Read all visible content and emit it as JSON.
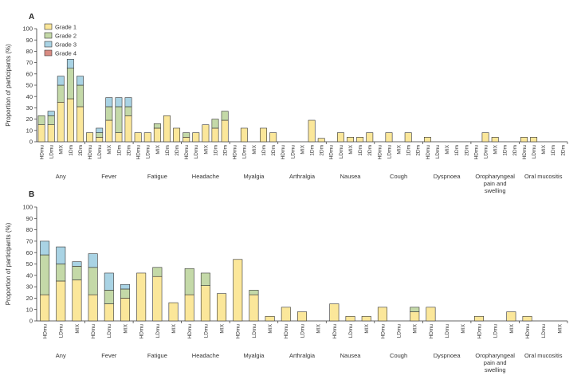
{
  "colors": {
    "Grade 1": "#fbe79a",
    "Grade 2": "#c4d9a8",
    "Grade 3": "#a9d3e4",
    "Grade 4": "#d98b82",
    "axis": "#333333"
  },
  "chart_data": [
    {
      "panel": "A",
      "type": "bar",
      "stacked": true,
      "ylabel": "Proportion of participants (%)",
      "ylim": [
        0,
        100
      ],
      "yticks": [
        0,
        10,
        20,
        30,
        40,
        50,
        60,
        70,
        80,
        90,
        100
      ],
      "legend": [
        "Grade 1",
        "Grade 2",
        "Grade 3",
        "Grade 4"
      ],
      "groups": [
        {
          "name": "Any",
          "bars": [
            {
              "label": "HDmu",
              "values": [
                15,
                8,
                0,
                0
              ]
            },
            {
              "label": "LDmu",
              "values": [
                15,
                8,
                4,
                0
              ]
            },
            {
              "label": "MIX",
              "values": [
                35,
                15,
                8,
                0
              ]
            },
            {
              "label": "1Dm",
              "values": [
                38,
                27,
                8,
                0
              ]
            },
            {
              "label": "2Dm",
              "values": [
                31,
                19,
                8,
                0
              ]
            }
          ]
        },
        {
          "name": "Fever",
          "bars": [
            {
              "label": "HDmu",
              "values": [
                8,
                0,
                0,
                0
              ]
            },
            {
              "label": "LDmu",
              "values": [
                4,
                4,
                4,
                0
              ]
            },
            {
              "label": "MIX",
              "values": [
                19,
                12,
                8,
                0
              ]
            },
            {
              "label": "1Dm",
              "values": [
                8,
                23,
                8,
                0
              ]
            },
            {
              "label": "2Dm",
              "values": [
                23,
                8,
                8,
                0
              ]
            }
          ]
        },
        {
          "name": "Fatigue",
          "bars": [
            {
              "label": "HDmu",
              "values": [
                8,
                0,
                0,
                0
              ]
            },
            {
              "label": "LDmu",
              "values": [
                8,
                0,
                0,
                0
              ]
            },
            {
              "label": "MIX",
              "values": [
                12,
                4,
                0,
                0
              ]
            },
            {
              "label": "1Dm",
              "values": [
                23,
                0,
                0,
                0
              ]
            },
            {
              "label": "2Dm",
              "values": [
                12,
                0,
                0,
                0
              ]
            }
          ]
        },
        {
          "name": "Headache",
          "bars": [
            {
              "label": "HDmu",
              "values": [
                4,
                4,
                0,
                0
              ]
            },
            {
              "label": "LDmu",
              "values": [
                8,
                0,
                0,
                0
              ]
            },
            {
              "label": "MIX",
              "values": [
                15,
                0,
                0,
                0
              ]
            },
            {
              "label": "1Dm",
              "values": [
                12,
                8,
                0,
                0
              ]
            },
            {
              "label": "2Dm",
              "values": [
                19,
                8,
                0,
                0
              ]
            }
          ]
        },
        {
          "name": "Myalgia",
          "bars": [
            {
              "label": "HDmu",
              "values": [
                0,
                0,
                0,
                0
              ]
            },
            {
              "label": "LDmu",
              "values": [
                12,
                0,
                0,
                0
              ]
            },
            {
              "label": "MIX",
              "values": [
                0,
                0,
                0,
                0
              ]
            },
            {
              "label": "1Dm",
              "values": [
                12,
                0,
                0,
                0
              ]
            },
            {
              "label": "2Dm",
              "values": [
                8,
                0,
                0,
                0
              ]
            }
          ]
        },
        {
          "name": "Arthralgia",
          "bars": [
            {
              "label": "HDmu",
              "values": [
                0,
                0,
                0,
                0
              ]
            },
            {
              "label": "LDmu",
              "values": [
                0,
                0,
                0,
                0
              ]
            },
            {
              "label": "MIX",
              "values": [
                0,
                0,
                0,
                0
              ]
            },
            {
              "label": "1Dm",
              "values": [
                19,
                0,
                0,
                0
              ]
            },
            {
              "label": "2Dm",
              "values": [
                3,
                0,
                0,
                0
              ]
            }
          ]
        },
        {
          "name": "Nausea",
          "bars": [
            {
              "label": "HDmu",
              "values": [
                0,
                0,
                0,
                0
              ]
            },
            {
              "label": "LDmu",
              "values": [
                8,
                0,
                0,
                0
              ]
            },
            {
              "label": "MIX",
              "values": [
                4,
                0,
                0,
                0
              ]
            },
            {
              "label": "1Dm",
              "values": [
                4,
                0,
                0,
                0
              ]
            },
            {
              "label": "2Dm",
              "values": [
                8,
                0,
                0,
                0
              ]
            }
          ]
        },
        {
          "name": "Cough",
          "bars": [
            {
              "label": "HDmu",
              "values": [
                0,
                0,
                0,
                0
              ]
            },
            {
              "label": "LDmu",
              "values": [
                8,
                0,
                0,
                0
              ]
            },
            {
              "label": "MIX",
              "values": [
                0,
                0,
                0,
                0
              ]
            },
            {
              "label": "1Dm",
              "values": [
                8,
                0,
                0,
                0
              ]
            },
            {
              "label": "2Dm",
              "values": [
                0,
                0,
                0,
                0
              ]
            }
          ]
        },
        {
          "name": "Dyspnoea",
          "bars": [
            {
              "label": "HDmu",
              "values": [
                4,
                0,
                0,
                0
              ]
            },
            {
              "label": "LDmu",
              "values": [
                0,
                0,
                0,
                0
              ]
            },
            {
              "label": "MIX",
              "values": [
                0,
                0,
                0,
                0
              ]
            },
            {
              "label": "1Dm",
              "values": [
                0,
                0,
                0,
                0
              ]
            },
            {
              "label": "2Dm",
              "values": [
                0,
                0,
                0,
                0
              ]
            }
          ]
        },
        {
          "name": "Oropharyngeal pain and swelling",
          "bars": [
            {
              "label": "HDmu",
              "values": [
                0,
                0,
                0,
                0
              ]
            },
            {
              "label": "LDmu",
              "values": [
                8,
                0,
                0,
                0
              ]
            },
            {
              "label": "MIX",
              "values": [
                4,
                0,
                0,
                0
              ]
            },
            {
              "label": "1Dm",
              "values": [
                0,
                0,
                0,
                0
              ]
            },
            {
              "label": "2Dm",
              "values": [
                0,
                0,
                0,
                0
              ]
            }
          ]
        },
        {
          "name": "Oral mucositis",
          "bars": [
            {
              "label": "HDmu",
              "values": [
                4,
                0,
                0,
                0
              ]
            },
            {
              "label": "LDmu",
              "values": [
                4,
                0,
                0,
                0
              ]
            },
            {
              "label": "MIX",
              "values": [
                0,
                0,
                0,
                0
              ]
            },
            {
              "label": "1Dm",
              "values": [
                0,
                0,
                0,
                0
              ]
            },
            {
              "label": "2Dm",
              "values": [
                0,
                0,
                0,
                0
              ]
            }
          ]
        }
      ]
    },
    {
      "panel": "B",
      "type": "bar",
      "stacked": true,
      "ylabel": "Proportion of participants (%)",
      "ylim": [
        0,
        100
      ],
      "yticks": [
        0,
        10,
        20,
        30,
        40,
        50,
        60,
        70,
        80,
        90,
        100
      ],
      "groups": [
        {
          "name": "Any",
          "bars": [
            {
              "label": "HDmu",
              "values": [
                23,
                35,
                12,
                0
              ]
            },
            {
              "label": "LDmu",
              "values": [
                35,
                15,
                15,
                0
              ]
            },
            {
              "label": "MIX",
              "values": [
                36,
                12,
                4,
                0
              ]
            }
          ]
        },
        {
          "name": "Fever",
          "bars": [
            {
              "label": "HDmu",
              "values": [
                23,
                24,
                12,
                0
              ]
            },
            {
              "label": "LDmu",
              "values": [
                15,
                12,
                15,
                0
              ]
            },
            {
              "label": "MIX",
              "values": [
                20,
                8,
                4,
                0
              ]
            }
          ]
        },
        {
          "name": "Fatigue",
          "bars": [
            {
              "label": "HDmu",
              "values": [
                42,
                0,
                0,
                0
              ]
            },
            {
              "label": "LDmu",
              "values": [
                39,
                8,
                0,
                0
              ]
            },
            {
              "label": "MIX",
              "values": [
                16,
                0,
                0,
                0
              ]
            }
          ]
        },
        {
          "name": "Headache",
          "bars": [
            {
              "label": "HDmu",
              "values": [
                23,
                23,
                0,
                0
              ]
            },
            {
              "label": "LDmu",
              "values": [
                31,
                11,
                0,
                0
              ]
            },
            {
              "label": "MIX",
              "values": [
                24,
                0,
                0,
                0
              ]
            }
          ]
        },
        {
          "name": "Myalgia",
          "bars": [
            {
              "label": "HDmu",
              "values": [
                54,
                0,
                0,
                0
              ]
            },
            {
              "label": "LDmu",
              "values": [
                23,
                4,
                0,
                0
              ]
            },
            {
              "label": "MIX",
              "values": [
                4,
                0,
                0,
                0
              ]
            }
          ]
        },
        {
          "name": "Arthralgia",
          "bars": [
            {
              "label": "HDmu",
              "values": [
                12,
                0,
                0,
                0
              ]
            },
            {
              "label": "LDmu",
              "values": [
                8,
                0,
                0,
                0
              ]
            },
            {
              "label": "MIX",
              "values": [
                0,
                0,
                0,
                0
              ]
            }
          ]
        },
        {
          "name": "Nausea",
          "bars": [
            {
              "label": "HDmu",
              "values": [
                15,
                0,
                0,
                0
              ]
            },
            {
              "label": "LDmu",
              "values": [
                4,
                0,
                0,
                0
              ]
            },
            {
              "label": "MIX",
              "values": [
                4,
                0,
                0,
                0
              ]
            }
          ]
        },
        {
          "name": "Cough",
          "bars": [
            {
              "label": "HDmu",
              "values": [
                12,
                0,
                0,
                0
              ]
            },
            {
              "label": "LDmu",
              "values": [
                0,
                0,
                0,
                0
              ]
            },
            {
              "label": "MIX",
              "values": [
                8,
                4,
                0,
                0
              ]
            }
          ]
        },
        {
          "name": "Dyspnoea",
          "bars": [
            {
              "label": "HDmu",
              "values": [
                12,
                0,
                0,
                0
              ]
            },
            {
              "label": "LDmu",
              "values": [
                0,
                0,
                0,
                0
              ]
            },
            {
              "label": "MIX",
              "values": [
                0,
                0,
                0,
                0
              ]
            }
          ]
        },
        {
          "name": "Oropharyngeal pain and swelling",
          "bars": [
            {
              "label": "HDmu",
              "values": [
                4,
                0,
                0,
                0
              ]
            },
            {
              "label": "LDmu",
              "values": [
                0,
                0,
                0,
                0
              ]
            },
            {
              "label": "MIX",
              "values": [
                8,
                0,
                0,
                0
              ]
            }
          ]
        },
        {
          "name": "Oral mucositis",
          "bars": [
            {
              "label": "HDmu",
              "values": [
                4,
                0,
                0,
                0
              ]
            },
            {
              "label": "LDmu",
              "values": [
                0,
                0,
                0,
                0
              ]
            },
            {
              "label": "MIX",
              "values": [
                0,
                0,
                0,
                0
              ]
            }
          ]
        }
      ]
    }
  ]
}
